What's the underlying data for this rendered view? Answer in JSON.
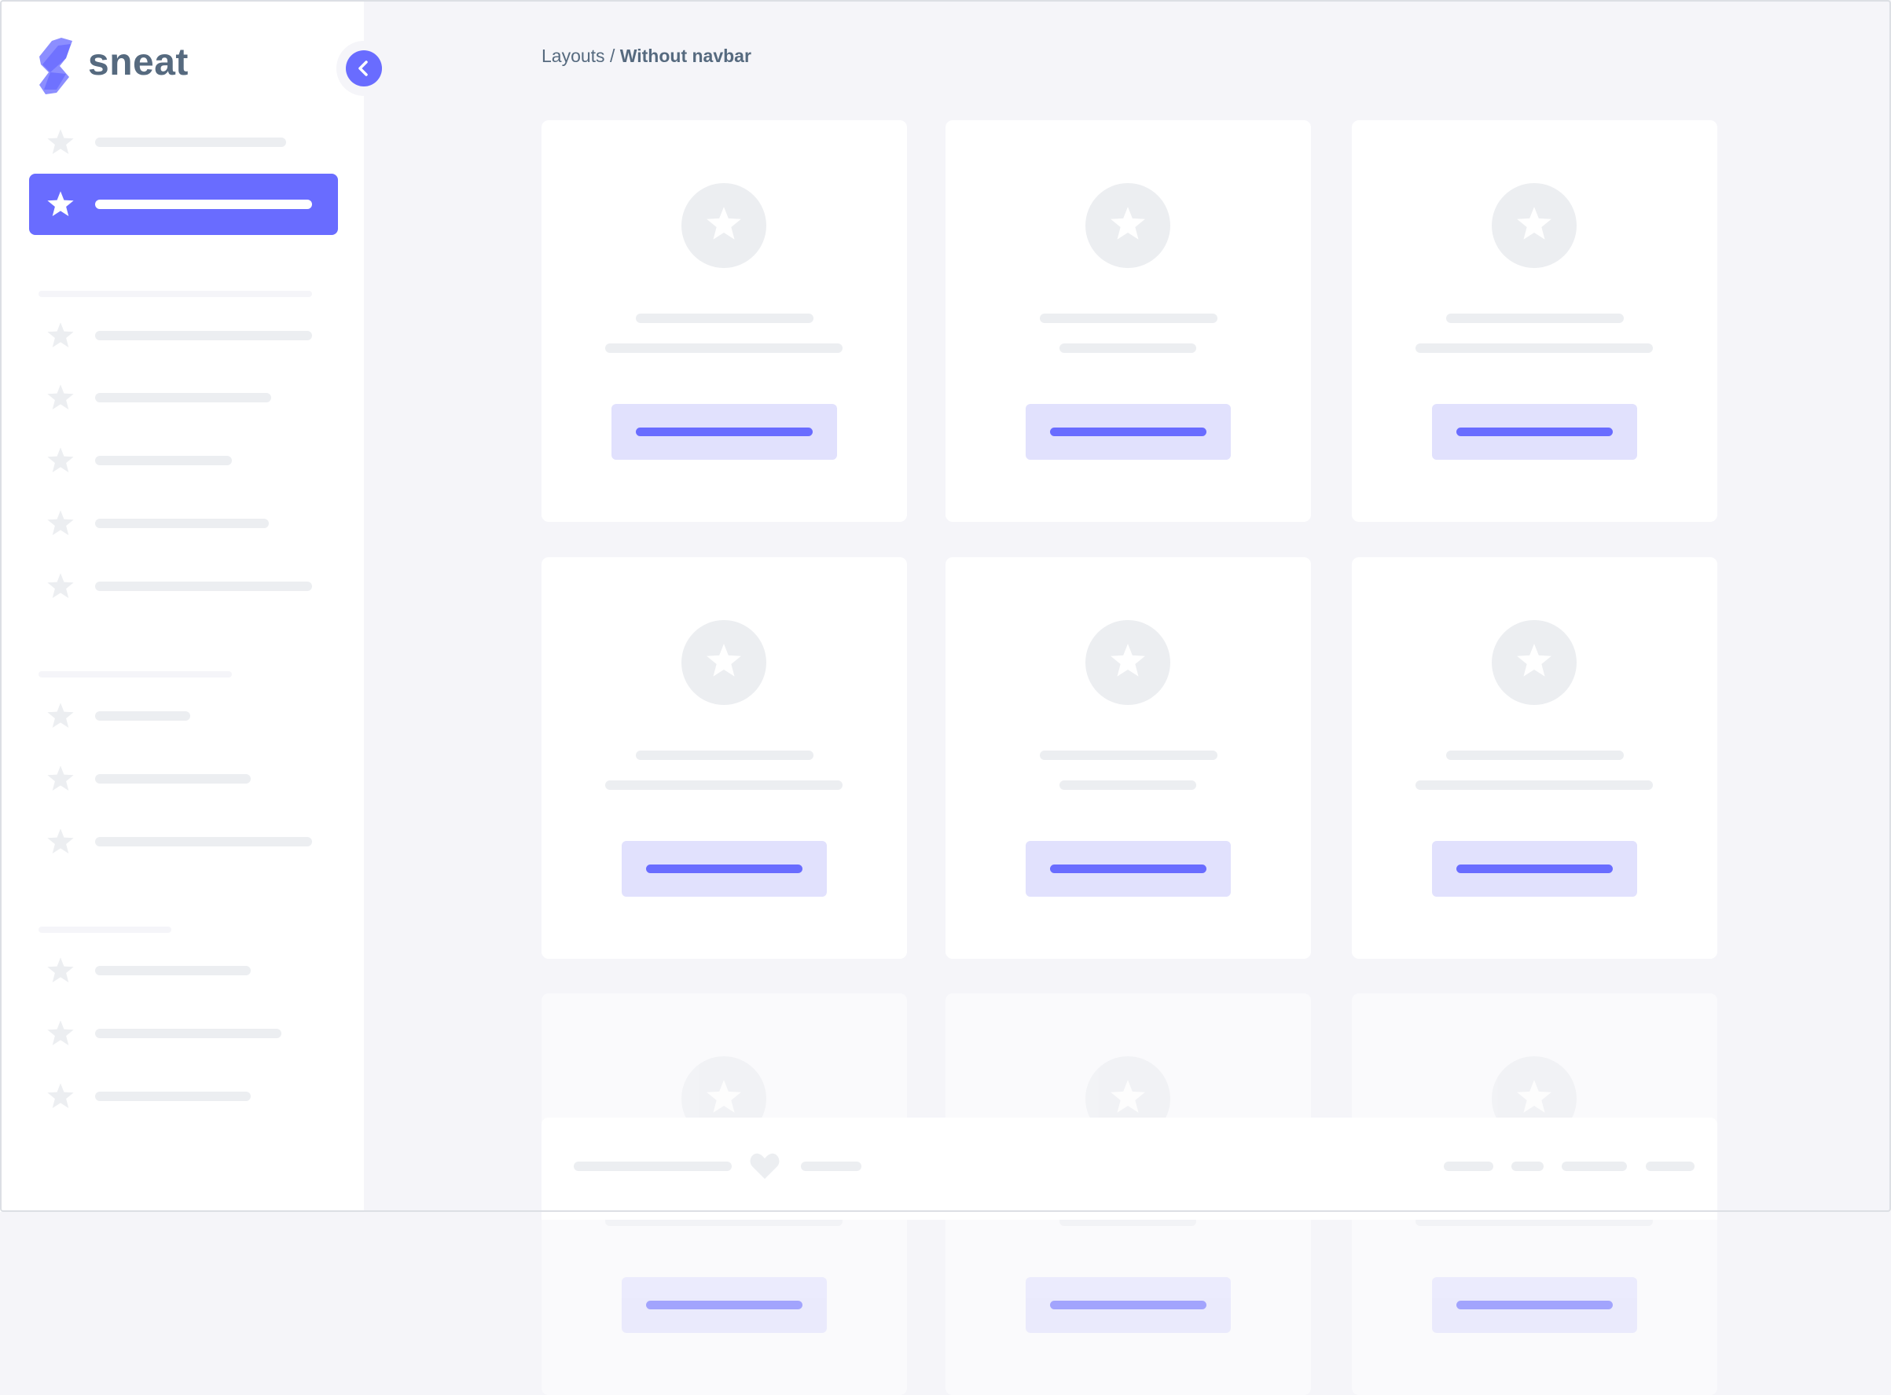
{
  "brand": {
    "name": "sneat",
    "color": "#696cff",
    "text_color": "#566a7f"
  },
  "sidebar": {
    "toggle_icon": "chevron-left-icon",
    "item_icon": "star-icon",
    "active_index": 1
  },
  "breadcrumb": {
    "parent": "Layouts",
    "separator": " / ",
    "current": "Without navbar"
  },
  "cards": {
    "count": 9,
    "icon": "star-icon"
  },
  "footer": {
    "icon": "heart-icon"
  }
}
